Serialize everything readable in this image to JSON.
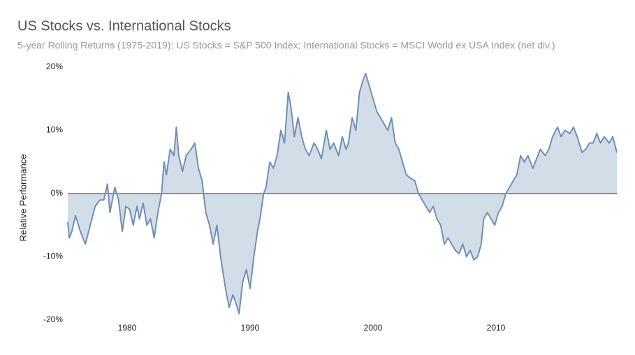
{
  "chart_data": {
    "type": "area",
    "title": "US Stocks vs. International Stocks",
    "subtitle": "5-year Rolling Returns (1975-2019): US Stocks = S&P 500 Index; International Stocks = MSCI World ex USA Index (net div.)",
    "y_label": "Relative Performance",
    "line_color": "#6f90b6",
    "fill_color": "#d3dde8",
    "xlim": [
      1975.17,
      2019.83
    ],
    "ylim": [
      -20,
      20
    ],
    "xticks": [
      1980,
      1990,
      2000,
      2010
    ],
    "yticks": [
      {
        "value": -20,
        "label": "-20%"
      },
      {
        "value": -10,
        "label": "-10%"
      },
      {
        "value": 0,
        "label": "0%"
      },
      {
        "value": 10,
        "label": "10%"
      },
      {
        "value": 20,
        "label": "20%"
      }
    ],
    "x": [
      1975.17,
      1975.3,
      1975.5,
      1975.8,
      1976.2,
      1976.6,
      1977.0,
      1977.4,
      1977.8,
      1978.1,
      1978.4,
      1978.6,
      1979.0,
      1979.3,
      1979.6,
      1979.9,
      1980.2,
      1980.5,
      1980.8,
      1981.0,
      1981.3,
      1981.6,
      1981.9,
      1982.2,
      1982.5,
      1982.8,
      1983.0,
      1983.2,
      1983.5,
      1983.8,
      1984.0,
      1984.2,
      1984.5,
      1984.8,
      1985.2,
      1985.5,
      1985.8,
      1986.1,
      1986.4,
      1986.7,
      1987.0,
      1987.3,
      1987.6,
      1988.0,
      1988.3,
      1988.6,
      1988.8,
      1989.1,
      1989.4,
      1989.7,
      1990.0,
      1990.3,
      1990.6,
      1990.8,
      1991.1,
      1991.3,
      1991.6,
      1991.9,
      1992.2,
      1992.5,
      1992.8,
      1993.1,
      1993.3,
      1993.6,
      1993.9,
      1994.2,
      1994.5,
      1994.8,
      1995.2,
      1995.5,
      1995.8,
      1996.2,
      1996.5,
      1996.8,
      1997.2,
      1997.5,
      1997.8,
      1998.0,
      1998.3,
      1998.6,
      1998.9,
      1999.2,
      1999.4,
      1999.7,
      2000.0,
      2000.3,
      2000.6,
      2000.9,
      2001.2,
      2001.5,
      2001.8,
      2002.1,
      2002.4,
      2002.7,
      2003.0,
      2003.4,
      2003.7,
      2004.0,
      2004.3,
      2004.6,
      2004.9,
      2005.2,
      2005.5,
      2005.8,
      2006.1,
      2006.4,
      2006.7,
      2007.0,
      2007.3,
      2007.6,
      2007.9,
      2008.2,
      2008.5,
      2008.8,
      2009.0,
      2009.3,
      2009.6,
      2009.9,
      2010.2,
      2010.5,
      2010.8,
      2011.1,
      2011.4,
      2011.7,
      2012.0,
      2012.3,
      2012.6,
      2013.0,
      2013.3,
      2013.6,
      2014.0,
      2014.3,
      2014.6,
      2015.0,
      2015.3,
      2015.6,
      2016.0,
      2016.3,
      2016.6,
      2017.0,
      2017.3,
      2017.6,
      2017.9,
      2018.2,
      2018.5,
      2018.8,
      2019.2,
      2019.5,
      2019.83
    ],
    "values": [
      -4.5,
      -7,
      -6,
      -3.5,
      -6,
      -8,
      -5,
      -2,
      -1,
      -1,
      1.5,
      -3,
      1,
      -1,
      -6,
      -2,
      -2.5,
      -5,
      -2,
      -4,
      -1.5,
      -5,
      -4,
      -7,
      -3,
      0,
      5,
      3,
      7,
      6,
      10.5,
      6,
      3.5,
      6,
      7,
      8,
      4,
      2,
      -3,
      -5,
      -8,
      -5,
      -10,
      -15,
      -18,
      -16,
      -17,
      -19,
      -14,
      -12,
      -15,
      -10,
      -6,
      -4,
      0,
      1,
      5,
      4,
      6,
      10,
      8,
      16,
      14,
      9,
      12,
      9,
      7,
      6,
      8,
      7,
      5.5,
      10,
      7,
      8,
      6,
      9,
      7,
      8,
      12,
      10,
      16,
      18,
      19,
      17,
      15,
      13,
      12,
      11,
      10,
      12,
      8,
      7,
      5,
      3,
      2.5,
      2,
      0,
      -1,
      -2,
      -3,
      -2,
      -4,
      -5,
      -8,
      -7,
      -8,
      -9,
      -9.5,
      -8,
      -10,
      -9,
      -10.5,
      -10,
      -8,
      -4,
      -3,
      -4,
      -5,
      -3,
      -2,
      0,
      1,
      2,
      3,
      6,
      5,
      6,
      4,
      5.5,
      7,
      6,
      7,
      9,
      10.5,
      9,
      10,
      9.5,
      10.5,
      9,
      6.5,
      7,
      8,
      8,
      9.5,
      8,
      9,
      8,
      9,
      6.5
    ]
  }
}
